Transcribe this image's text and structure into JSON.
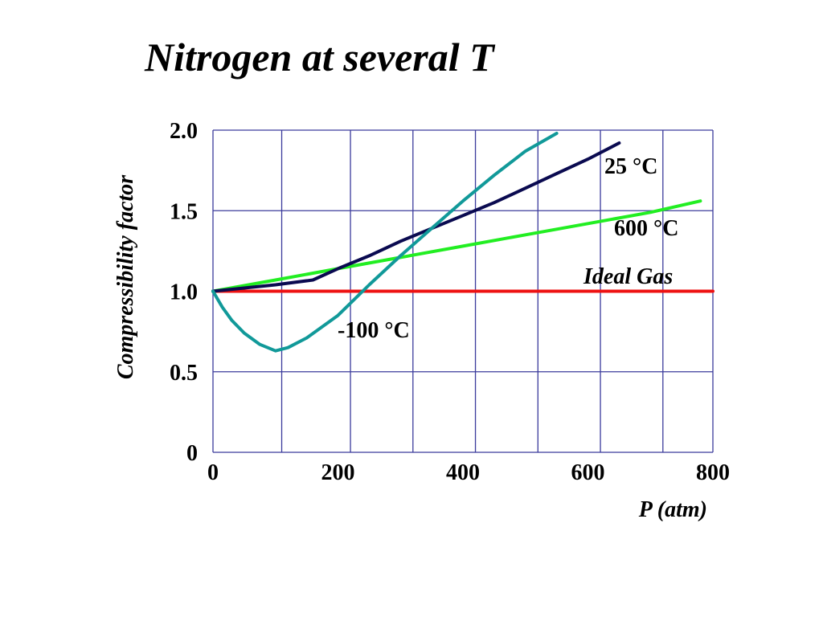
{
  "chart_data": {
    "type": "line",
    "title": "Nitrogen at several T",
    "xlabel": "P (atm)",
    "ylabel": "Compressibility factor",
    "xlim": [
      0,
      800
    ],
    "ylim": [
      0,
      2.0
    ],
    "x_ticks": [
      0,
      200,
      400,
      600,
      800
    ],
    "x_tick_labels": [
      "0",
      "200",
      "400",
      "600",
      "800"
    ],
    "y_ticks": [
      0,
      0.5,
      1.0,
      1.5,
      2.0
    ],
    "y_tick_labels": [
      "0",
      "0.5",
      "1.0",
      "1.5",
      "2.0"
    ],
    "x_grid": [
      0,
      110,
      220,
      320,
      420,
      520,
      620,
      720,
      800
    ],
    "y_grid": [
      0,
      0.5,
      1.5,
      2.0
    ],
    "grid": true,
    "grid_color": "#3b3b9c",
    "series": [
      {
        "name": "Ideal Gas",
        "color": "#ee1111",
        "x": [
          0,
          800
        ],
        "y": [
          1.0,
          1.0
        ]
      },
      {
        "name": "600 °C",
        "color": "#22ee22",
        "x": [
          0,
          100,
          200,
          300,
          400,
          500,
          600,
          700,
          780
        ],
        "y": [
          1.0,
          1.07,
          1.14,
          1.21,
          1.28,
          1.35,
          1.42,
          1.49,
          1.56
        ]
      },
      {
        "name": "25 °C",
        "color": "#0a0a50",
        "x": [
          0,
          50,
          100,
          160,
          200,
          250,
          300,
          350,
          400,
          450,
          500,
          550,
          600,
          650
        ],
        "y": [
          1.0,
          1.02,
          1.04,
          1.07,
          1.14,
          1.22,
          1.31,
          1.39,
          1.47,
          1.55,
          1.64,
          1.73,
          1.82,
          1.92
        ]
      },
      {
        "name": "-100 °C",
        "color": "#119999",
        "x": [
          0,
          15,
          30,
          50,
          75,
          100,
          120,
          150,
          200,
          250,
          300,
          350,
          400,
          450,
          500,
          550
        ],
        "y": [
          1.0,
          0.9,
          0.82,
          0.74,
          0.67,
          0.63,
          0.65,
          0.71,
          0.85,
          1.04,
          1.22,
          1.39,
          1.56,
          1.72,
          1.87,
          1.98
        ]
      }
    ]
  },
  "labels": {
    "ideal_gas": "Ideal Gas",
    "t600": "600 °C",
    "t25": "25 °C",
    "tm100": "-100 °C"
  }
}
